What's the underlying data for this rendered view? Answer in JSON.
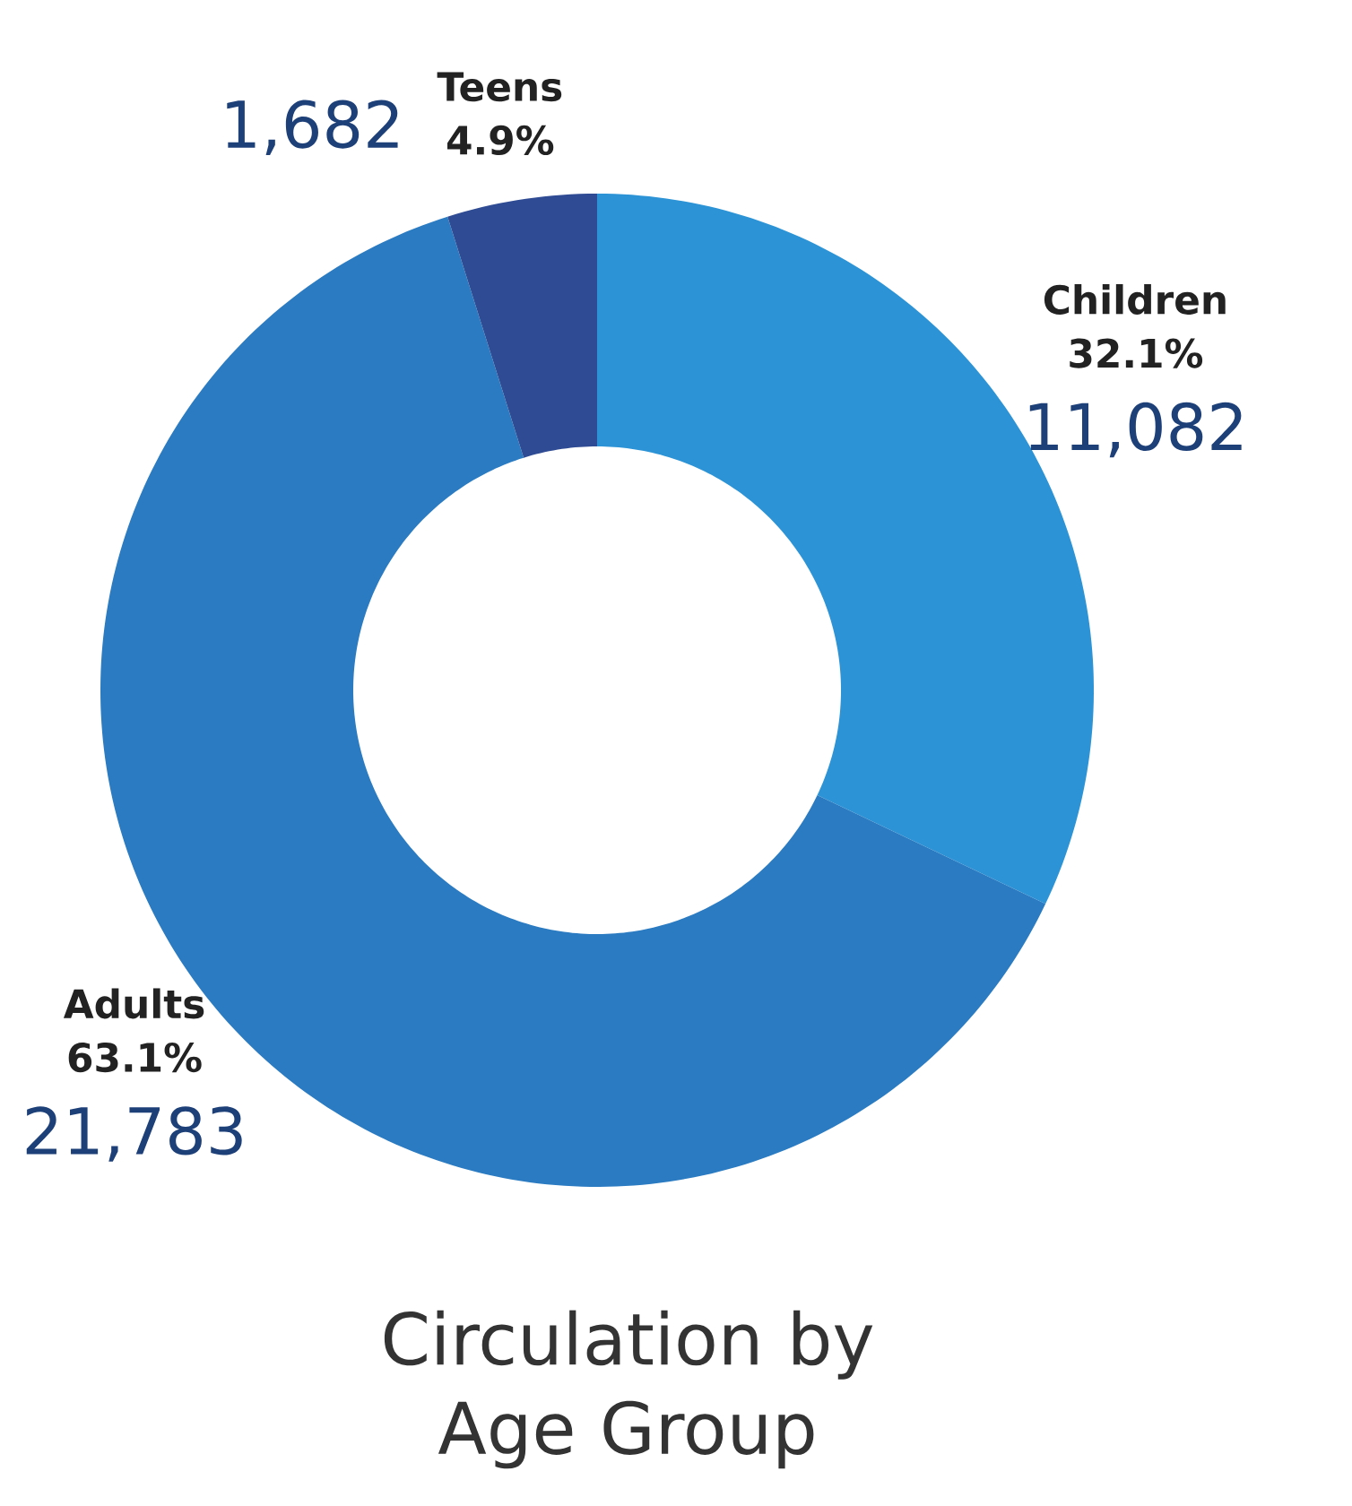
{
  "chart_data": {
    "type": "donut",
    "title": "Circulation by Age Group",
    "categories": [
      "Children",
      "Adults",
      "Teens"
    ],
    "values": [
      11082,
      21783,
      1682
    ],
    "value_labels": [
      "11,082",
      "21,783",
      "1,682"
    ],
    "colors": [
      "#2c94d6",
      "#2a7bc2",
      "#2f4b93"
    ],
    "annotations": [
      "32.1%",
      "63.1%",
      "4.9%"
    ]
  }
}
